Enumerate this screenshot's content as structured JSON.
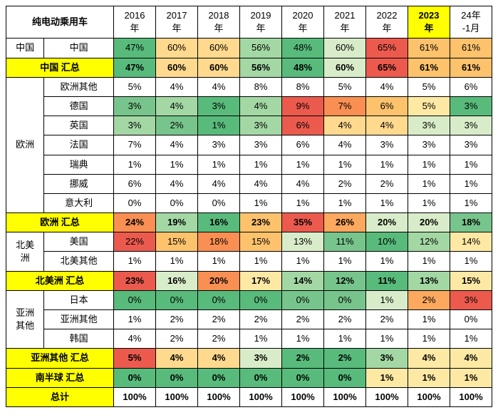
{
  "title": "纯电动乘用车",
  "columns": [
    "2016\n年",
    "2017\n年",
    "2018\n年",
    "2019\n年",
    "2020\n年",
    "2021\n年",
    "2022\n年",
    "2023\n年",
    "24年\n-1月"
  ],
  "highlight_col": 7,
  "palette": {
    "g4": "#58bb7b",
    "g3": "#77c58c",
    "g2": "#a3d8a4",
    "g1": "#d9ecc9",
    "y3": "#fee9a4",
    "y2": "#fed98e",
    "y1": "#fdc26c",
    "o2": "#fca85e",
    "o1": "#f98f52",
    "r1": "#f47461",
    "r2": "#ec5a4e"
  },
  "regions": [
    {
      "name": "中国",
      "rows": [
        {
          "label": "中国",
          "vals": [
            "47%",
            "60%",
            "60%",
            "56%",
            "48%",
            "60%",
            "65%",
            "61%",
            "61%"
          ],
          "cols": [
            "g4",
            "y2",
            "y2",
            "g2",
            "g4",
            "g1",
            "r2",
            "y1",
            "y1"
          ]
        }
      ],
      "subtotal": {
        "label": "中国 汇总",
        "vals": [
          "47%",
          "60%",
          "60%",
          "56%",
          "48%",
          "60%",
          "65%",
          "61%",
          "61%"
        ],
        "cols": [
          "g4",
          "y2",
          "y2",
          "g2",
          "g4",
          "g1",
          "r2",
          "y1",
          "y1"
        ]
      }
    },
    {
      "name": "欧洲",
      "rows": [
        {
          "label": "欧洲其他",
          "vals": [
            "5%",
            "4%",
            "4%",
            "8%",
            "8%",
            "5%",
            "4%",
            "5%",
            "6%"
          ],
          "cols": [
            "",
            "",
            "",
            "",
            "",
            "",
            "",
            "",
            ""
          ]
        },
        {
          "label": "德国",
          "vals": [
            "3%",
            "4%",
            "3%",
            "4%",
            "9%",
            "7%",
            "6%",
            "5%",
            "3%"
          ],
          "cols": [
            "g3",
            "g2",
            "g4",
            "g2",
            "r2",
            "o1",
            "y1",
            "y3",
            "g4"
          ]
        },
        {
          "label": "英国",
          "vals": [
            "3%",
            "2%",
            "1%",
            "3%",
            "6%",
            "4%",
            "4%",
            "3%",
            "3%"
          ],
          "cols": [
            "g2",
            "g3",
            "g4",
            "g2",
            "r2",
            "y2",
            "y2",
            "g1",
            "g1"
          ]
        },
        {
          "label": "法国",
          "vals": [
            "7%",
            "4%",
            "3%",
            "3%",
            "6%",
            "4%",
            "3%",
            "3%",
            "3%"
          ],
          "cols": [
            "",
            "",
            "",
            "",
            "",
            "",
            "",
            "",
            ""
          ]
        },
        {
          "label": "瑞典",
          "vals": [
            "1%",
            "1%",
            "1%",
            "1%",
            "1%",
            "1%",
            "1%",
            "1%",
            "1%"
          ],
          "cols": [
            "",
            "",
            "",
            "",
            "",
            "",
            "",
            "",
            ""
          ]
        },
        {
          "label": "挪威",
          "vals": [
            "6%",
            "4%",
            "4%",
            "4%",
            "4%",
            "2%",
            "2%",
            "1%",
            "1%"
          ],
          "cols": [
            "",
            "",
            "",
            "",
            "",
            "",
            "",
            "",
            ""
          ]
        },
        {
          "label": "意大利",
          "vals": [
            "0%",
            "0%",
            "0%",
            "1%",
            "1%",
            "1%",
            "1%",
            "1%",
            "1%"
          ],
          "cols": [
            "",
            "",
            "",
            "",
            "",
            "",
            "",
            "",
            ""
          ]
        }
      ],
      "subtotal": {
        "label": "欧洲 汇总",
        "vals": [
          "24%",
          "19%",
          "16%",
          "23%",
          "35%",
          "26%",
          "20%",
          "20%",
          "18%"
        ],
        "cols": [
          "o1",
          "g2",
          "g4",
          "y1",
          "r2",
          "o2",
          "g1",
          "g1",
          "g3"
        ]
      }
    },
    {
      "name": "北美\n洲",
      "rows": [
        {
          "label": "美国",
          "vals": [
            "22%",
            "15%",
            "18%",
            "15%",
            "13%",
            "11%",
            "10%",
            "12%",
            "14%"
          ],
          "cols": [
            "r2",
            "y1",
            "o1",
            "y1",
            "g1",
            "g3",
            "g4",
            "g2",
            "y3"
          ]
        },
        {
          "label": "北美其他",
          "vals": [
            "1%",
            "1%",
            "1%",
            "1%",
            "1%",
            "1%",
            "1%",
            "1%",
            "1%"
          ],
          "cols": [
            "",
            "",
            "",
            "",
            "",
            "",
            "",
            "",
            ""
          ]
        }
      ],
      "subtotal": {
        "label": "北美洲 汇总",
        "vals": [
          "23%",
          "16%",
          "20%",
          "17%",
          "14%",
          "12%",
          "11%",
          "13%",
          "15%"
        ],
        "cols": [
          "r2",
          "g1",
          "o1",
          "y3",
          "g2",
          "g3",
          "g4",
          "g2",
          "y3"
        ]
      }
    },
    {
      "name": "亚洲\n其他",
      "rows": [
        {
          "label": "日本",
          "vals": [
            "0%",
            "0%",
            "0%",
            "0%",
            "0%",
            "0%",
            "1%",
            "2%",
            "3%"
          ],
          "cols": [
            "g4",
            "g4",
            "g4",
            "g4",
            "g3",
            "g3",
            "g1",
            "o2",
            "r2"
          ]
        },
        {
          "label": "亚洲其他",
          "vals": [
            "1%",
            "2%",
            "2%",
            "2%",
            "2%",
            "2%",
            "2%",
            "1%",
            "0%"
          ],
          "cols": [
            "",
            "",
            "",
            "",
            "",
            "",
            "",
            "",
            ""
          ]
        },
        {
          "label": "韩国",
          "vals": [
            "4%",
            "2%",
            "2%",
            "1%",
            "1%",
            "1%",
            "1%",
            "1%",
            "1%"
          ],
          "cols": [
            "",
            "",
            "",
            "",
            "",
            "",
            "",
            "",
            ""
          ]
        }
      ],
      "subtotal": {
        "label": "亚洲其他 汇总",
        "vals": [
          "5%",
          "4%",
          "4%",
          "3%",
          "2%",
          "2%",
          "3%",
          "4%",
          "4%"
        ],
        "cols": [
          "r2",
          "y2",
          "y2",
          "g1",
          "g4",
          "g4",
          "g2",
          "y3",
          "y3"
        ]
      }
    }
  ],
  "extra_subtotal": {
    "label": "南半球 汇总",
    "vals": [
      "0%",
      "0%",
      "0%",
      "0%",
      "0%",
      "0%",
      "1%",
      "1%",
      "1%"
    ],
    "cols": [
      "g4",
      "g4",
      "g4",
      "g4",
      "g4",
      "g4",
      "y3",
      "y3",
      "y3"
    ]
  },
  "total": {
    "label": "总计",
    "vals": [
      "100%",
      "100%",
      "100%",
      "100%",
      "100%",
      "100%",
      "100%",
      "100%",
      "100%"
    ]
  }
}
